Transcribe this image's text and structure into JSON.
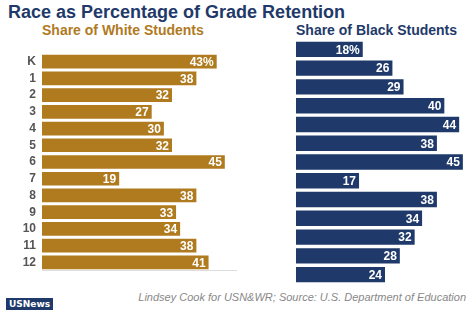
{
  "title": "Race as Percentage of Grade Retention",
  "source": "Lindsey Cook for USN&WR; Source: U.S. Department of Education",
  "logo": "USNews",
  "chart_data": [
    {
      "type": "bar",
      "orientation": "horizontal",
      "title": "Share of White Students",
      "categories": [
        "K",
        "1",
        "2",
        "3",
        "4",
        "5",
        "6",
        "7",
        "8",
        "9",
        "10",
        "11",
        "12"
      ],
      "values": [
        43,
        38,
        32,
        27,
        30,
        32,
        45,
        19,
        38,
        33,
        34,
        38,
        41
      ],
      "value_labels": [
        "43%",
        "38",
        "32",
        "27",
        "30",
        "32",
        "45",
        "19",
        "38",
        "33",
        "34",
        "38",
        "41"
      ],
      "color": "#b07a1f",
      "xlim": [
        0,
        48
      ],
      "grid": false,
      "data_labels": true,
      "tick_labels": "y"
    },
    {
      "type": "bar",
      "orientation": "horizontal",
      "title": "Share of Black Students",
      "categories": [
        "K",
        "1",
        "2",
        "3",
        "4",
        "5",
        "6",
        "7",
        "8",
        "9",
        "10",
        "11",
        "12"
      ],
      "values": [
        18,
        26,
        29,
        40,
        44,
        38,
        45,
        17,
        38,
        34,
        32,
        28,
        24
      ],
      "value_labels": [
        "18%",
        "26",
        "29",
        "40",
        "44",
        "38",
        "45",
        "17",
        "38",
        "34",
        "32",
        "28",
        "24"
      ],
      "color": "#1f3a6a",
      "xlim": [
        0,
        48
      ],
      "grid": false,
      "data_labels": true,
      "tick_labels": false
    }
  ]
}
